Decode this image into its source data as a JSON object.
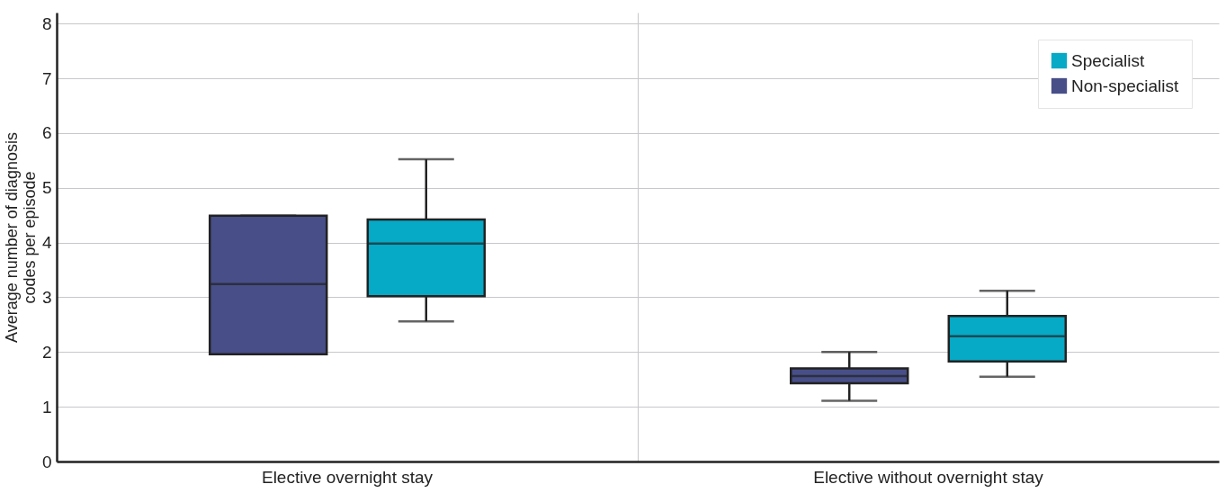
{
  "chart_data": {
    "type": "box",
    "ylabel": "Average number of diagnosis codes per episode",
    "categories": [
      "Elective overnight stay",
      "Elective without overnight stay"
    ],
    "ylim": [
      0,
      8.2
    ],
    "yticks": [
      0,
      1,
      2,
      3,
      4,
      5,
      6,
      7,
      8
    ],
    "grid": true,
    "legend": "top right",
    "series": [
      {
        "name": "Non-specialist",
        "color": "#474e88",
        "boxes": [
          {
            "low": 1.96,
            "q1": 1.96,
            "median": 3.24,
            "q3": 4.49,
            "high": 4.49
          },
          {
            "low": 1.11,
            "q1": 1.43,
            "median": 1.56,
            "q3": 1.7,
            "high": 2.0
          }
        ]
      },
      {
        "name": "Specialist",
        "color": "#06a9c6",
        "boxes": [
          {
            "low": 2.56,
            "q1": 3.02,
            "median": 3.98,
            "q3": 4.42,
            "high": 5.52
          },
          {
            "low": 1.55,
            "q1": 1.83,
            "median": 2.29,
            "q3": 2.66,
            "high": 3.12
          }
        ]
      }
    ]
  }
}
